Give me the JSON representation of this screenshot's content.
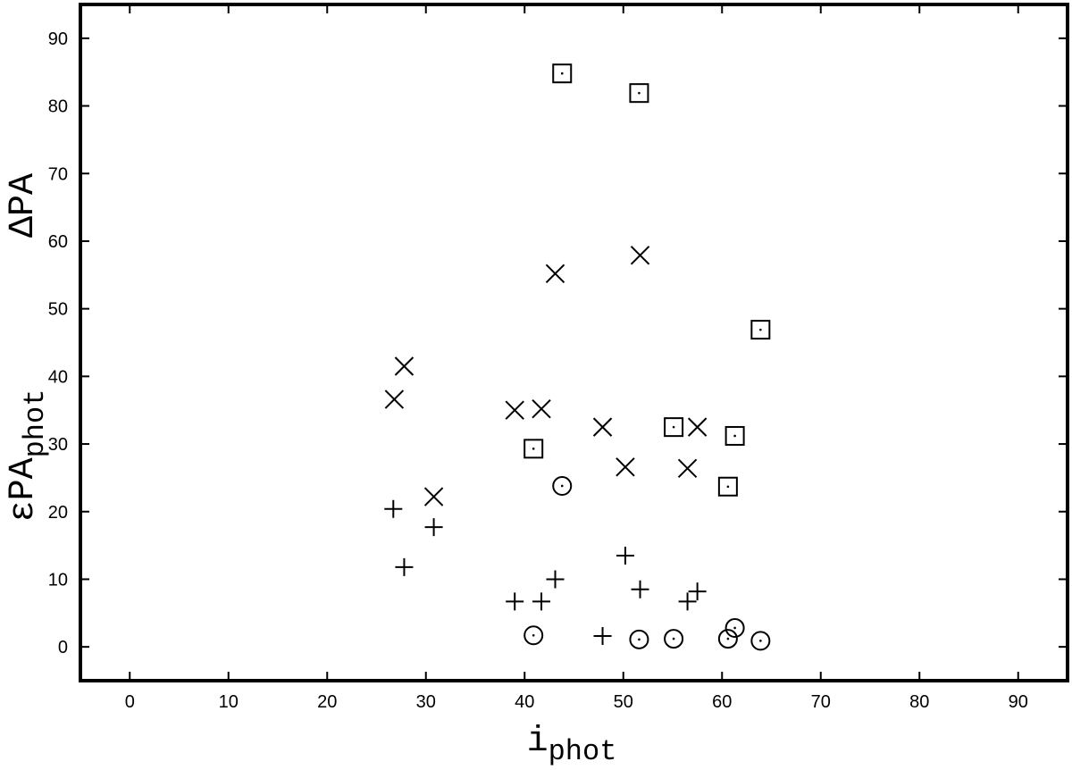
{
  "chart_data": {
    "type": "scatter",
    "xlabel": {
      "text": "i",
      "sub": "phot"
    },
    "ylabel_lower": {
      "text": "εPA",
      "sub": "phot"
    },
    "ylabel_upper": "ΔPA",
    "xlim": [
      -5,
      95
    ],
    "ylim": [
      -5,
      95
    ],
    "xticks": [
      0,
      10,
      20,
      30,
      40,
      50,
      60,
      70,
      80,
      90
    ],
    "yticks": [
      0,
      10,
      20,
      30,
      40,
      50,
      60,
      70,
      80,
      90
    ],
    "series": [
      {
        "marker": "plus",
        "color": "#000000",
        "x": [
          26.7,
          27.8,
          30.8,
          39.0,
          41.7,
          43.1,
          47.9,
          50.2,
          51.7,
          56.5,
          57.5
        ],
        "values": [
          20.4,
          11.8,
          17.7,
          6.7,
          6.7,
          10.0,
          1.6,
          13.5,
          8.5,
          6.7,
          8.2
        ]
      },
      {
        "marker": "cross",
        "color": "#000000",
        "x": [
          26.8,
          27.8,
          30.8,
          39.0,
          41.7,
          43.1,
          47.9,
          50.2,
          51.7,
          56.5,
          57.5
        ],
        "values": [
          36.6,
          41.5,
          22.2,
          35.0,
          35.2,
          55.2,
          32.5,
          26.6,
          57.9,
          26.4,
          32.5
        ]
      },
      {
        "marker": "dotted-square",
        "color": "#000000",
        "x": [
          40.9,
          43.8,
          51.6,
          55.1,
          60.6,
          61.3,
          63.9
        ],
        "values": [
          29.3,
          84.8,
          81.9,
          32.5,
          23.7,
          31.2,
          46.9
        ]
      },
      {
        "marker": "dotted-circle",
        "color": "#000000",
        "x": [
          40.9,
          43.8,
          51.6,
          55.1,
          60.6,
          61.3,
          63.9
        ],
        "values": [
          1.7,
          23.8,
          1.1,
          1.2,
          1.2,
          2.8,
          0.9
        ]
      }
    ]
  }
}
